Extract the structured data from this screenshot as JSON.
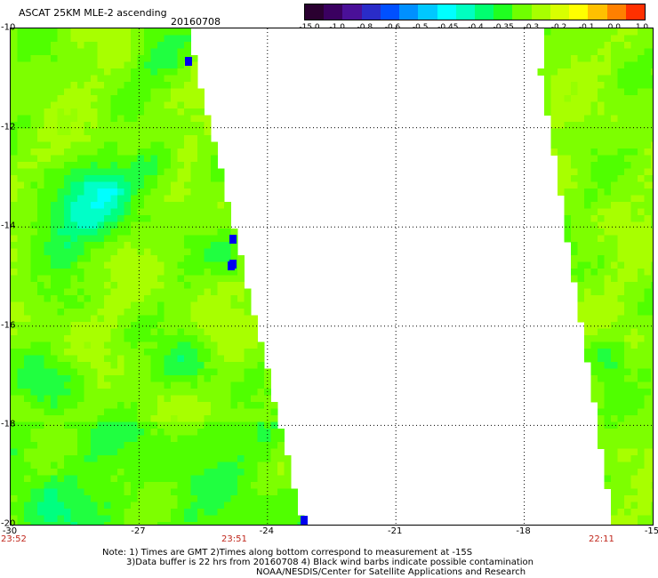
{
  "header": {
    "title": "ASCAT 25KM MLE-2 ascending",
    "date": "20160708"
  },
  "colorbar": {
    "colors": [
      "#2a0030",
      "#3a0060",
      "#4a1098",
      "#2a2cc8",
      "#0050ff",
      "#0090ff",
      "#00c8ff",
      "#00ffff",
      "#00ffc0",
      "#00ff70",
      "#20ff20",
      "#70ff00",
      "#a8ff00",
      "#d8ff00",
      "#ffff00",
      "#ffc000",
      "#ff8000",
      "#ff3000"
    ],
    "labels": [
      "-15.0",
      "-1.0",
      "-0.8",
      "-0.6",
      "-0.5",
      "-0.45",
      "-0.4",
      "-0.35",
      "-0.3",
      "-0.2",
      "-0.1",
      "0.0",
      "1.0"
    ]
  },
  "map": {
    "lat_labels": [
      "-10",
      "-12",
      "-14",
      "-16",
      "-18",
      "-20"
    ],
    "lon_labels": [
      "-30",
      "-27",
      "-24",
      "-21",
      "-18",
      "-15"
    ],
    "time_labels": [
      "23:52",
      "23:51",
      "22:11"
    ]
  },
  "footer": {
    "note1": "Note: 1) Times are GMT 2)Times along bottom correspond to measurement at -15S",
    "note2": "3)Data buffer is 22 hrs from 20160708 4) Black wind barbs indicate possible contamination",
    "note3": "NOAA/NESDIS/Center for Satellite Applications and Research"
  }
}
